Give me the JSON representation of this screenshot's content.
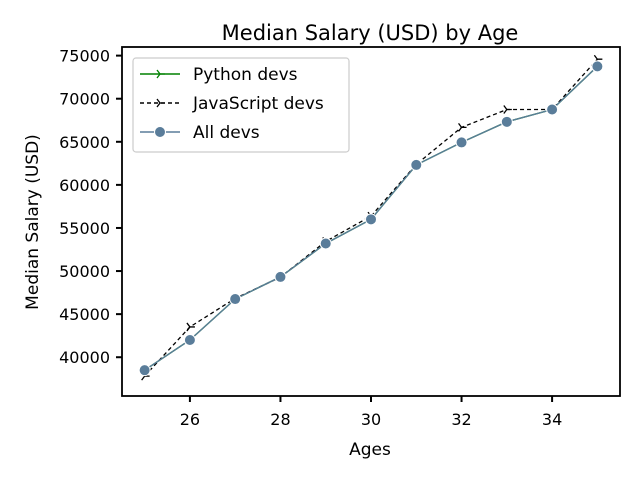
{
  "chart_data": {
    "type": "line",
    "title": "Median Salary (USD) by Age",
    "xlabel": "Ages",
    "ylabel": "Median Salary (USD)",
    "x": [
      25,
      26,
      27,
      28,
      29,
      30,
      31,
      32,
      33,
      34,
      35
    ],
    "xlim": [
      24.5,
      35.5
    ],
    "ylim": [
      35500,
      76000
    ],
    "x_ticks": [
      26,
      28,
      30,
      32,
      34
    ],
    "y_ticks": [
      40000,
      45000,
      50000,
      55000,
      60000,
      65000,
      70000,
      75000
    ],
    "grid": false,
    "legend_position": "upper-left",
    "series": [
      {
        "name": "Python devs",
        "color": "#008000",
        "style": "solid",
        "marker": "tri-right",
        "values": [
          38496,
          42000,
          46752,
          49320,
          53200,
          56000,
          62316,
          64928,
          67317,
          68748,
          73752
        ]
      },
      {
        "name": "JavaScript devs",
        "color": "#000000",
        "style": "dashed",
        "marker": "tri-right",
        "values": [
          37810,
          43515,
          46823,
          49293,
          53437,
          56373,
          62375,
          66674,
          68745,
          68746,
          74583
        ]
      },
      {
        "name": "All devs",
        "color": "#5a7d9a",
        "style": "solid",
        "marker": "circle",
        "values": [
          38496,
          42000,
          46752,
          49320,
          53200,
          56000,
          62316,
          64928,
          67317,
          68748,
          73752
        ]
      }
    ]
  }
}
